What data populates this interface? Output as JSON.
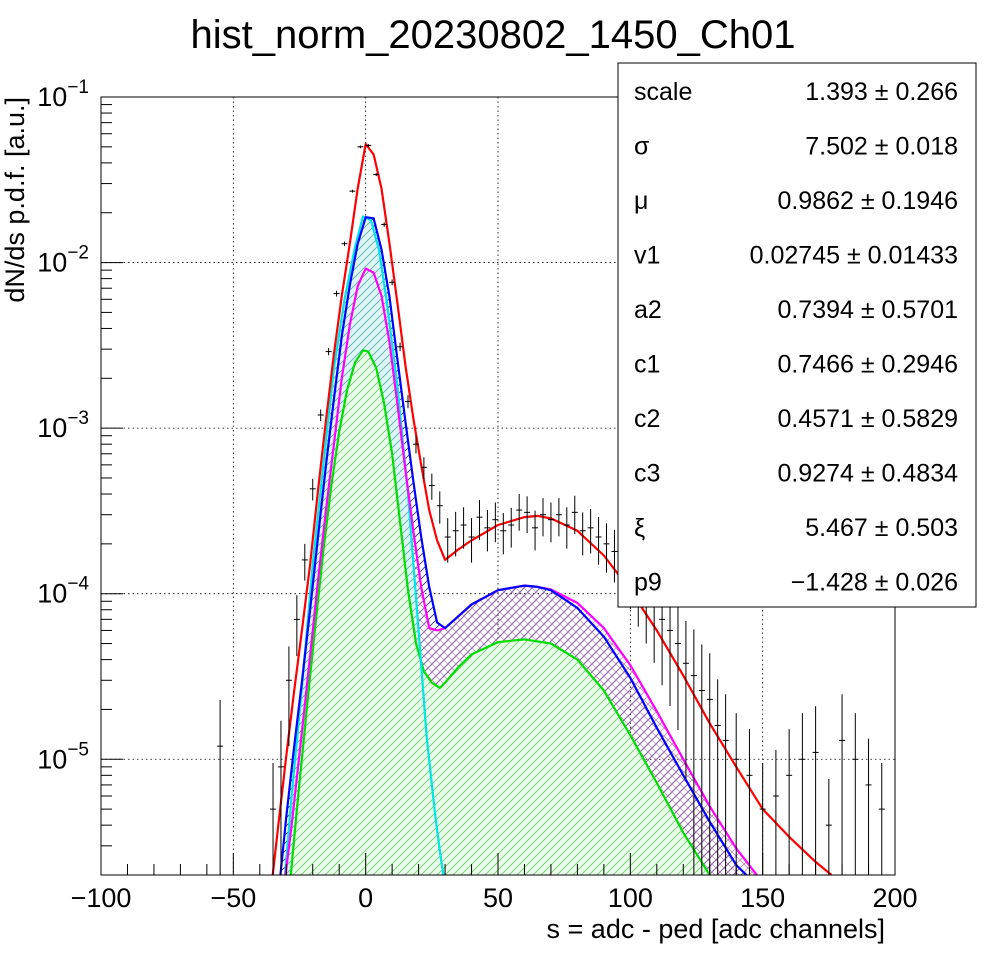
{
  "chart_data": {
    "type": "histogram",
    "title": "hist_norm_20230802_1450_Ch01",
    "xlabel": "s = adc - ped [adc channels]",
    "ylabel": "dN/ds p.d.f. [a.u.]",
    "xlim": [
      -100,
      200
    ],
    "ylim": [
      2e-06,
      0.1
    ],
    "yscale": "log",
    "grid": true,
    "x_ticks": [
      {
        "value": -100,
        "label": "−100"
      },
      {
        "value": -50,
        "label": "−50"
      },
      {
        "value": 0,
        "label": "0"
      },
      {
        "value": 50,
        "label": "50"
      },
      {
        "value": 100,
        "label": "100"
      },
      {
        "value": 150,
        "label": "150"
      },
      {
        "value": 200,
        "label": "200"
      }
    ],
    "y_ticks": [
      {
        "value": 1e-05,
        "base": "10",
        "exp": "−5"
      },
      {
        "value": 0.0001,
        "base": "10",
        "exp": "−4"
      },
      {
        "value": 0.001,
        "base": "10",
        "exp": "−3"
      },
      {
        "value": 0.01,
        "base": "10",
        "exp": "−2"
      },
      {
        "value": 0.1,
        "base": "10",
        "exp": "−1"
      }
    ],
    "stats_box": {
      "position": "top-right",
      "rows": [
        {
          "name": "scale",
          "value": "1.393 ± 0.266"
        },
        {
          "name": "σ",
          "value": "7.502 ± 0.018"
        },
        {
          "name": "μ",
          "value": "0.9862 ± 0.1946"
        },
        {
          "name": "v1",
          "value": "0.02745 ± 0.01433"
        },
        {
          "name": "a2",
          "value": "0.7394 ± 0.5701"
        },
        {
          "name": "c1",
          "value": "0.7466 ± 0.2946"
        },
        {
          "name": "c2",
          "value": "0.4571 ± 0.5829"
        },
        {
          "name": "c3",
          "value": "0.9274 ± 0.4834"
        },
        {
          "name": "ξ",
          "value": "5.467 ± 0.503"
        },
        {
          "name": "p9",
          "value": "−1.428 ± 0.026"
        }
      ]
    },
    "series": [
      {
        "role": "total-fit",
        "color": "#ff0000",
        "x": [
          -36,
          -33,
          -30,
          -27,
          -24,
          -21,
          -18,
          -15,
          -12,
          -9,
          -6,
          -3,
          0,
          3,
          6,
          9,
          12,
          15,
          18,
          21,
          24,
          27,
          30,
          35,
          40,
          50,
          60,
          65,
          70,
          80,
          90,
          100,
          110,
          120,
          130,
          140,
          150,
          160,
          170,
          176
        ],
        "y": [
          1.5e-06,
          4e-06,
          1.05e-05,
          2.6e-05,
          6.1e-05,
          0.00015,
          0.00042,
          0.00112,
          0.0028,
          0.0063,
          0.013,
          0.028,
          0.052,
          0.045,
          0.028,
          0.013,
          0.0057,
          0.0024,
          0.00115,
          0.0006,
          0.00032,
          0.00021,
          0.00016,
          0.000185,
          0.00021,
          0.00026,
          0.00029,
          0.000295,
          0.000285,
          0.00024,
          0.00017,
          0.000105,
          6e-05,
          3.2e-05,
          1.65e-05,
          9e-06,
          5e-06,
          3.4e-06,
          2.4e-06,
          2e-06
        ]
      },
      {
        "role": "single-component",
        "color": "#00e5e5",
        "x": [
          -31,
          -28,
          -24,
          -20,
          -16,
          -12,
          -8,
          -4,
          -1,
          2,
          5,
          8,
          12,
          16,
          20,
          23,
          26,
          28,
          30
        ],
        "y": [
          1.6e-06,
          6e-06,
          2.8e-05,
          0.00015,
          0.0006,
          0.0023,
          0.006,
          0.0125,
          0.019,
          0.018,
          0.012,
          0.0058,
          0.0018,
          0.0004,
          6e-05,
          1.4e-05,
          5e-06,
          2.8e-06,
          1.7e-06
        ]
      },
      {
        "role": "signal-sum",
        "color": "#0000ff",
        "x": [
          -33,
          -30,
          -27,
          -24,
          -21,
          -18,
          -15,
          -12,
          -9,
          -6,
          -3,
          0,
          3,
          6,
          9,
          12,
          15,
          18,
          21,
          24,
          27,
          30,
          35,
          40,
          50,
          60,
          65,
          70,
          80,
          90,
          100,
          110,
          120,
          130,
          140,
          150
        ],
        "y": [
          1.5e-06,
          4.5e-06,
          1.2e-05,
          3e-05,
          8e-05,
          0.00022,
          0.0006,
          0.0015,
          0.0036,
          0.0073,
          0.013,
          0.0188,
          0.0185,
          0.012,
          0.0062,
          0.0026,
          0.0011,
          0.00048,
          0.00022,
          0.00011,
          6.7e-05,
          6.2e-05,
          7.3e-05,
          8.6e-05,
          0.000105,
          0.000112,
          0.00011,
          0.000105,
          8.2e-05,
          5.5e-05,
          3.1e-05,
          1.55e-05,
          8e-06,
          4.2e-06,
          2.3e-06,
          1.6e-06
        ]
      },
      {
        "role": "component-2",
        "color": "#ff00ff",
        "x": [
          -31,
          -28,
          -24,
          -21,
          -18,
          -15,
          -12,
          -9,
          -6,
          -3,
          0,
          3,
          6,
          9,
          12,
          15,
          18,
          21,
          24,
          27,
          30,
          35,
          40,
          50,
          60,
          65,
          70,
          80,
          90,
          100,
          110,
          120,
          130,
          140,
          150,
          152
        ],
        "y": [
          1.6e-06,
          4e-06,
          1.5e-05,
          4.2e-05,
          0.00012,
          0.00032,
          0.0008,
          0.002,
          0.0042,
          0.0072,
          0.0092,
          0.0087,
          0.0063,
          0.0033,
          0.0014,
          0.00056,
          0.00024,
          0.00011,
          6.2e-05,
          6e-05,
          6.2e-05,
          7.3e-05,
          8.6e-05,
          0.000105,
          0.000112,
          0.00011,
          0.000106,
          8.8e-05,
          6.2e-05,
          3.7e-05,
          1.95e-05,
          1e-05,
          5.2e-06,
          2.9e-06,
          1.8e-06,
          1.6e-06
        ]
      },
      {
        "role": "component-3",
        "color": "#00dd00",
        "x": [
          -29,
          -26,
          -22,
          -19,
          -16,
          -13,
          -10,
          -7,
          -4,
          -1,
          1,
          4,
          7,
          10,
          13,
          16,
          19,
          22,
          25,
          28,
          30,
          35,
          40,
          50,
          60,
          70,
          80,
          90,
          100,
          110,
          120,
          130,
          140,
          144
        ],
        "y": [
          1.5e-06,
          5e-06,
          2.2e-05,
          6.5e-05,
          0.00018,
          0.00045,
          0.00095,
          0.0017,
          0.0025,
          0.00295,
          0.0029,
          0.0023,
          0.0014,
          0.0007,
          0.00027,
          0.000105,
          5e-05,
          3.4e-05,
          2.9e-05,
          2.7e-05,
          2.9e-05,
          3.6e-05,
          4.3e-05,
          5.1e-05,
          5.3e-05,
          5e-05,
          4e-05,
          2.6e-05,
          1.4e-05,
          7.2e-06,
          3.6e-06,
          2e-06,
          1.7e-06,
          1.5e-06
        ]
      }
    ],
    "data_points": {
      "color": "#000000",
      "x": [
        -55,
        -35,
        -32,
        -29,
        -26,
        -23,
        -20,
        -17,
        -14,
        -11,
        -8,
        -5,
        -2,
        1,
        4,
        7,
        10,
        13,
        16,
        19,
        22,
        25,
        28,
        31,
        34,
        37,
        40,
        43,
        46,
        49,
        52,
        55,
        58,
        61,
        64,
        67,
        70,
        73,
        76,
        79,
        82,
        85,
        88,
        91,
        94,
        97,
        100,
        103,
        106,
        109,
        112,
        115,
        118,
        121,
        124,
        127,
        130,
        133,
        136,
        140,
        145,
        150,
        155,
        160,
        165,
        170,
        175,
        180,
        185,
        190,
        195
      ],
      "y": [
        1.2e-05,
        5e-06,
        9e-06,
        3e-05,
        7e-05,
        0.00016,
        0.00043,
        0.0012,
        0.0029,
        0.0065,
        0.013,
        0.027,
        0.05,
        0.051,
        0.034,
        0.017,
        0.0076,
        0.0031,
        0.00145,
        0.0008,
        0.00058,
        0.00045,
        0.00034,
        0.00022,
        0.00024,
        0.00026,
        0.00022,
        0.00029,
        0.00025,
        0.00028,
        0.00024,
        0.00026,
        0.00032,
        0.00031,
        0.00025,
        0.0003,
        0.00028,
        0.0003,
        0.00026,
        0.00031,
        0.00024,
        0.00025,
        0.00022,
        0.0002,
        0.00018,
        0.000155,
        0.000135,
        0.000115,
        0.0001,
        8.5e-05,
        7e-05,
        6e-05,
        5e-05,
        3.8e-05,
        3.2e-05,
        2.6e-05,
        2.3e-05,
        1.6e-05,
        1.3e-05,
        1e-05,
        8e-06,
        5e-06,
        6e-06,
        8e-06,
        1e-05,
        1.1e-05,
        4e-06,
        1.3e-05,
        1e-05,
        7e-06,
        5e-06
      ],
      "rel_err": [
        0.9,
        0.9,
        0.9,
        0.6,
        0.4,
        0.25,
        0.15,
        0.08,
        0.05,
        0.04,
        0.03,
        0.02,
        0.02,
        0.02,
        0.02,
        0.03,
        0.04,
        0.06,
        0.09,
        0.12,
        0.15,
        0.18,
        0.22,
        0.3,
        0.3,
        0.28,
        0.3,
        0.27,
        0.28,
        0.27,
        0.28,
        0.27,
        0.25,
        0.25,
        0.27,
        0.26,
        0.27,
        0.26,
        0.28,
        0.26,
        0.29,
        0.3,
        0.32,
        0.33,
        0.35,
        0.38,
        0.4,
        0.45,
        0.5,
        0.55,
        0.6,
        0.65,
        0.7,
        0.8,
        0.9,
        0.9,
        0.9,
        0.9,
        0.9,
        0.9,
        0.9,
        0.9,
        0.9,
        0.9,
        0.9,
        0.9,
        0.9,
        0.9,
        0.9,
        0.9,
        0.9
      ]
    }
  }
}
